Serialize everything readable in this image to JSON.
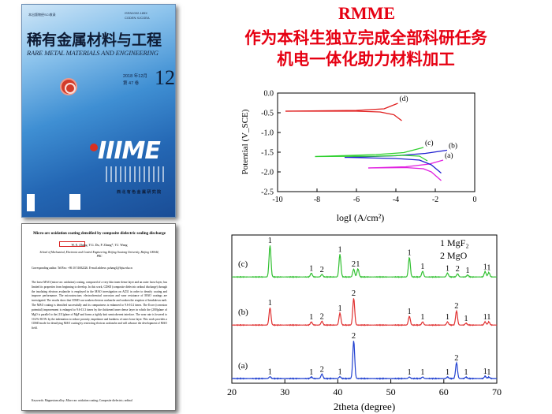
{
  "header": {
    "line1": "RMME",
    "line2": "作为本科生独立完成全部科研任务",
    "line3": "机电一体化助力材料加工"
  },
  "cover": {
    "top_small": "本出版物经SCI收录",
    "issn": "ISSN1002-185X",
    "coden": "CODEN XJCGEA",
    "title_cn": "稀有金属材料与工程",
    "title_en": "RARE METAL MATERIALS AND ENGINEERING",
    "year_month": "2018 年12月",
    "volume": "第 47 卷",
    "issue": "12",
    "publisher": "西 北 有 色 金 属 研 究 院"
  },
  "paper": {
    "title": "Micro-arc oxidation coating densified by composite dielectric sealing discharge",
    "authors": "W. E. Zhang, Y.G. Du, P. Zhang*, Y.J. Wang",
    "affiliation": "School of Mechanical, Electronic and Control Engineering, Beijing Jiaotong University, Beijing 100044, PRC",
    "corresponding": "Corresponding author. Tel/Fax: +86 10 51682226. E-mail address: pzhang1@bjtu.edu.cn",
    "abstract": "The loose MAO (micro-arc oxidation) coating, composed of a very thin inner dense layer and an outer loose layer, has limited its properties from beginning to develop. In this work, CDSD (composite dielectric ordinal discharge) through the insolating electron avalanche is employed in the MAO investigation on AZ31 in order to densify coating and improve performance. The microstructure, electrochemical corrosion and wear resistance of MAO coatings are investigated. The results show that CDSD can weaken electron avalanche and weaken the eruption of breakdown melt. The MAO coating is densified successfully and its compactness is enhanced to 9.6-10.2 times. The Ecorr (corrosion potential) improvement is enlarged to 9.6-13.3 times by the thickened inner dense layer in which the (200)plane of MgO is parallel to the (111)plane of MgF and forms a tightly knit semicoherent interface. The wear rate is lowered to 10.2%-38.5% by the indentation to reduce porosity, impedance and hardness of outer loose layer. This work provides a CDSD mode for densifying MAO coating by restricting electron avalanche and will advance the development of MAO field.",
    "keywords": "Keywords: Magnesium alloy; Micro-arc oxidation coating; Composite dielectric; ordinal"
  },
  "chart_data": [
    {
      "type": "line",
      "title": "",
      "xlabel": "logI (A/cm²)",
      "ylabel": "Potential (V_SCE)",
      "xlim": [
        -10,
        0
      ],
      "ylim": [
        -2.5,
        0.0
      ],
      "xticks": [
        "-10",
        "-8",
        "-6",
        "-4",
        "-2",
        "0"
      ],
      "yticks": [
        "0.0",
        "-0.5",
        "-1.0",
        "-1.5",
        "-2.0",
        "-2.5"
      ],
      "grid": false,
      "series": [
        {
          "name": "(a)",
          "color": "#e020e0",
          "cathodic": [
            [
              -5.4,
              -1.9
            ],
            [
              -3.5,
              -1.89
            ],
            [
              -2.6,
              -1.92
            ],
            [
              -2.2,
              -2.0
            ],
            [
              -1.7,
              -2.22
            ]
          ],
          "anodic": [
            [
              -5.4,
              -1.9
            ],
            [
              -3.5,
              -1.87
            ],
            [
              -2.3,
              -1.8
            ],
            [
              -1.6,
              -1.7
            ]
          ]
        },
        {
          "name": "(b)",
          "color": "#2020d0",
          "cathodic": [
            [
              -6.6,
              -1.63
            ],
            [
              -4.0,
              -1.66
            ],
            [
              -2.8,
              -1.7
            ],
            [
              -2.2,
              -1.82
            ],
            [
              -1.7,
              -2.03
            ]
          ],
          "anodic": [
            [
              -6.6,
              -1.63
            ],
            [
              -4.0,
              -1.59
            ],
            [
              -2.5,
              -1.53
            ],
            [
              -1.4,
              -1.45
            ]
          ]
        },
        {
          "name": "(c)",
          "color": "#30d030",
          "cathodic": [
            [
              -8.1,
              -1.61
            ],
            [
              -5.0,
              -1.6
            ],
            [
              -3.6,
              -1.58
            ],
            [
              -2.8,
              -1.6
            ],
            [
              -2.4,
              -1.72
            ]
          ],
          "anodic": [
            [
              -8.1,
              -1.61
            ],
            [
              -5.0,
              -1.56
            ],
            [
              -3.6,
              -1.51
            ],
            [
              -2.6,
              -1.38
            ]
          ]
        },
        {
          "name": "(d)",
          "color": "#e02020",
          "cathodic": [
            [
              -9.6,
              -0.46
            ],
            [
              -6.0,
              -0.46
            ],
            [
              -4.8,
              -0.48
            ],
            [
              -4.1,
              -0.55
            ],
            [
              -3.7,
              -0.7
            ]
          ],
          "anodic": [
            [
              -9.6,
              -0.46
            ],
            [
              -6.0,
              -0.44
            ],
            [
              -4.6,
              -0.4
            ],
            [
              -3.9,
              -0.26
            ]
          ]
        }
      ]
    },
    {
      "type": "line",
      "title": "",
      "xlabel": "2theta (degree)",
      "ylabel": "",
      "xlim": [
        20,
        70
      ],
      "xticks": [
        "20",
        "30",
        "40",
        "50",
        "60",
        "70"
      ],
      "grid": false,
      "legend": [
        "1 MgF₂",
        "2 MgO"
      ],
      "series": [
        {
          "name": "(c)",
          "color": "#30c030",
          "peaks": [
            [
              27.2,
              1.0,
              "1"
            ],
            [
              35.0,
              0.12,
              "1"
            ],
            [
              37.0,
              0.08,
              "2"
            ],
            [
              40.4,
              0.72,
              "1"
            ],
            [
              43.0,
              0.25,
              "2"
            ],
            [
              43.8,
              0.26,
              "1"
            ],
            [
              53.5,
              0.62,
              "1"
            ],
            [
              56.0,
              0.18,
              "1"
            ],
            [
              60.7,
              0.12,
              "1"
            ],
            [
              62.6,
              0.1,
              "2"
            ],
            [
              64.5,
              0.06,
              "1"
            ],
            [
              67.8,
              0.17,
              "1"
            ],
            [
              68.5,
              0.14,
              "1"
            ]
          ]
        },
        {
          "name": "(b)",
          "color": "#e03030",
          "peaks": [
            [
              27.2,
              0.55,
              "1"
            ],
            [
              35.0,
              0.1,
              "1"
            ],
            [
              37.0,
              0.12,
              "2"
            ],
            [
              40.4,
              0.38,
              "1"
            ],
            [
              43.0,
              0.85,
              "2"
            ],
            [
              53.5,
              0.28,
              "1"
            ],
            [
              56.0,
              0.1,
              "1"
            ],
            [
              60.7,
              0.1,
              "1"
            ],
            [
              62.4,
              0.45,
              "2"
            ],
            [
              64.2,
              0.06,
              "1"
            ],
            [
              67.8,
              0.1,
              "1"
            ],
            [
              68.5,
              0.1,
              "1"
            ]
          ]
        },
        {
          "name": "(a)",
          "color": "#2040d0",
          "peaks": [
            [
              27.2,
              0.05,
              "1"
            ],
            [
              35.0,
              0.04,
              "1"
            ],
            [
              37.0,
              0.12,
              "2"
            ],
            [
              40.4,
              0.05,
              "1"
            ],
            [
              43.0,
              1.0,
              "2"
            ],
            [
              53.5,
              0.04,
              "1"
            ],
            [
              56.0,
              0.04,
              "1"
            ],
            [
              60.7,
              0.04,
              "1"
            ],
            [
              62.4,
              0.42,
              "2"
            ],
            [
              64.2,
              0.04,
              "1"
            ],
            [
              67.8,
              0.06,
              "1"
            ],
            [
              68.5,
              0.04,
              "1"
            ]
          ]
        }
      ]
    }
  ]
}
